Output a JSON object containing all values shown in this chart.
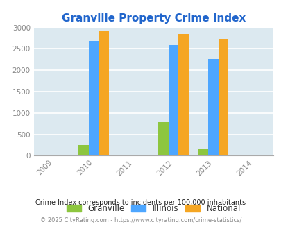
{
  "title": "Granville Property Crime Index",
  "years": [
    2009,
    2010,
    2011,
    2012,
    2013,
    2014
  ],
  "data_years": [
    "2010",
    "2012",
    "2013"
  ],
  "granville": [
    250,
    780,
    160
  ],
  "illinois": [
    2680,
    2580,
    2270
  ],
  "national": [
    2920,
    2850,
    2730
  ],
  "bar_colors": {
    "granville": "#8dc63f",
    "illinois": "#4da6ff",
    "national": "#f5a623"
  },
  "ylim": [
    0,
    3000
  ],
  "yticks": [
    0,
    500,
    1000,
    1500,
    2000,
    2500,
    3000
  ],
  "bg_color": "#dce9f0",
  "grid_color": "#ffffff",
  "title_color": "#2266cc",
  "title_fontsize": 11,
  "legend_labels": [
    "Granville",
    "Illinois",
    "National"
  ],
  "legend_text_color": "#333333",
  "footnote1": "Crime Index corresponds to incidents per 100,000 inhabitants",
  "footnote2": "© 2025 CityRating.com - https://www.cityrating.com/crime-statistics/",
  "bar_width": 0.25
}
